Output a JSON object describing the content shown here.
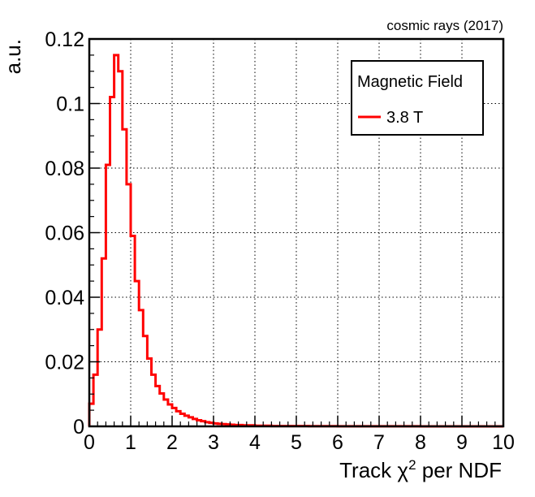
{
  "chart_data": {
    "type": "histogram",
    "annotation": "cosmic rays (2017)",
    "xlabel_prefix": "Track ",
    "xlabel_symbol": "χ",
    "xlabel_sup": "2",
    "xlabel_suffix": " per NDF",
    "ylabel": "a.u.",
    "xlim": [
      0,
      10
    ],
    "ylim": [
      0,
      0.12
    ],
    "x_ticks": [
      0,
      1,
      2,
      3,
      4,
      5,
      6,
      7,
      8,
      9,
      10
    ],
    "x_tick_labels": [
      "0",
      "1",
      "2",
      "3",
      "4",
      "5",
      "6",
      "7",
      "8",
      "9",
      "10"
    ],
    "y_ticks": [
      0,
      0.02,
      0.04,
      0.06,
      0.08,
      0.1,
      0.12
    ],
    "y_tick_labels": [
      "0",
      "0.02",
      "0.04",
      "0.06",
      "0.08",
      "0.1",
      "0.12"
    ],
    "grid": true,
    "legend": {
      "title": "Magnetic Field",
      "position": "top-right",
      "entries": [
        {
          "label": "3.8 T",
          "color": "#ff0000"
        }
      ]
    },
    "series": [
      {
        "name": "3.8 T",
        "color": "#ff0000",
        "bin_width": 0.1,
        "x_start": 0,
        "values": [
          0.007,
          0.016,
          0.03,
          0.052,
          0.081,
          0.102,
          0.115,
          0.11,
          0.092,
          0.075,
          0.059,
          0.045,
          0.036,
          0.028,
          0.021,
          0.016,
          0.0125,
          0.0102,
          0.0083,
          0.0068,
          0.0057,
          0.0047,
          0.0039,
          0.0033,
          0.0028,
          0.0023,
          0.0019,
          0.0016,
          0.0013,
          0.0011,
          0.0009,
          0.0008,
          0.0007,
          0.0006,
          0.0005,
          0.0004,
          0.0004,
          0.0003,
          0.0003,
          0.0003,
          0.0002,
          0.0002,
          0.0002,
          0.0002,
          0.0001,
          0.0001,
          0.0001,
          0.0001,
          0.0001,
          0.0001,
          0.0001,
          8e-05,
          8e-05,
          7e-05,
          7e-05,
          6e-05,
          6e-05,
          5e-05,
          5e-05,
          5e-05,
          4e-05,
          4e-05,
          4e-05,
          4e-05,
          3e-05,
          3e-05,
          3e-05,
          3e-05,
          3e-05,
          3e-05,
          2e-05,
          2e-05,
          2e-05,
          2e-05,
          2e-05,
          2e-05,
          2e-05,
          2e-05,
          2e-05,
          2e-05,
          1e-05,
          1e-05,
          1e-05,
          1e-05,
          1e-05,
          1e-05,
          1e-05,
          1e-05,
          1e-05,
          1e-05,
          1e-05,
          1e-05,
          1e-05,
          1e-05,
          1e-05,
          1e-05,
          1e-05,
          1e-05,
          1e-05,
          1e-05
        ]
      }
    ]
  }
}
